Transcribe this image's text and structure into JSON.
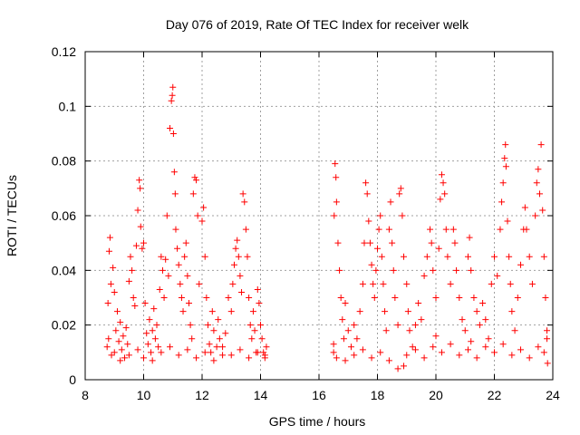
{
  "chart_data": {
    "type": "scatter",
    "title": "Day 076 of 2019, Rate Of TEC Index for receiver welk",
    "xlabel": "GPS time / hours",
    "ylabel": "ROTI / TECUs",
    "xlim": [
      8,
      24
    ],
    "ylim": [
      0,
      0.12
    ],
    "xticks": [
      8,
      10,
      12,
      14,
      16,
      18,
      20,
      22,
      24
    ],
    "xtick_labels": [
      "8",
      "10",
      "12",
      "14",
      "16",
      "18",
      "20",
      "22",
      "24"
    ],
    "yticks": [
      0,
      0.02,
      0.04,
      0.06,
      0.08,
      0.1,
      0.12
    ],
    "ytick_labels": [
      "0",
      "0.02",
      "0.04",
      "0.06",
      "0.08",
      "0.1",
      "0.12"
    ],
    "grid": true,
    "marker": "+",
    "series": [
      {
        "name": "welk",
        "color": "#ff0000",
        "points": [
          [
            8.75,
            0.012
          ],
          [
            8.78,
            0.028
          ],
          [
            8.82,
            0.047
          ],
          [
            8.85,
            0.052
          ],
          [
            8.88,
            0.035
          ],
          [
            8.9,
            0.009
          ],
          [
            8.95,
            0.041
          ],
          [
            9.0,
            0.032
          ],
          [
            9.05,
            0.018
          ],
          [
            9.1,
            0.025
          ],
          [
            9.15,
            0.014
          ],
          [
            9.2,
            0.021
          ],
          [
            9.25,
            0.011
          ],
          [
            9.3,
            0.016
          ],
          [
            9.35,
            0.008
          ],
          [
            9.4,
            0.019
          ],
          [
            9.45,
            0.013
          ],
          [
            9.5,
            0.036
          ],
          [
            9.55,
            0.045
          ],
          [
            9.6,
            0.04
          ],
          [
            9.65,
            0.03
          ],
          [
            9.7,
            0.027
          ],
          [
            9.75,
            0.049
          ],
          [
            9.8,
            0.062
          ],
          [
            9.85,
            0.073
          ],
          [
            9.88,
            0.07
          ],
          [
            9.9,
            0.056
          ],
          [
            9.95,
            0.048
          ],
          [
            10.0,
            0.05
          ],
          [
            10.05,
            0.028
          ],
          [
            10.1,
            0.017
          ],
          [
            10.15,
            0.013
          ],
          [
            10.2,
            0.022
          ],
          [
            10.25,
            0.01
          ],
          [
            10.3,
            0.018
          ],
          [
            10.35,
            0.026
          ],
          [
            10.4,
            0.015
          ],
          [
            10.45,
            0.02
          ],
          [
            10.5,
            0.012
          ],
          [
            10.55,
            0.033
          ],
          [
            10.6,
            0.045
          ],
          [
            10.65,
            0.04
          ],
          [
            10.7,
            0.03
          ],
          [
            10.75,
            0.044
          ],
          [
            10.8,
            0.06
          ],
          [
            10.85,
            0.038
          ],
          [
            10.9,
            0.092
          ],
          [
            10.95,
            0.102
          ],
          [
            10.98,
            0.104
          ],
          [
            11.0,
            0.107
          ],
          [
            11.02,
            0.09
          ],
          [
            11.05,
            0.076
          ],
          [
            11.08,
            0.068
          ],
          [
            11.1,
            0.055
          ],
          [
            11.15,
            0.048
          ],
          [
            11.2,
            0.042
          ],
          [
            11.25,
            0.035
          ],
          [
            11.3,
            0.03
          ],
          [
            11.35,
            0.025
          ],
          [
            11.4,
            0.045
          ],
          [
            11.45,
            0.05
          ],
          [
            11.5,
            0.038
          ],
          [
            11.55,
            0.028
          ],
          [
            11.6,
            0.02
          ],
          [
            11.65,
            0.015
          ],
          [
            11.7,
            0.068
          ],
          [
            11.75,
            0.074
          ],
          [
            11.8,
            0.073
          ],
          [
            11.85,
            0.06
          ],
          [
            11.9,
            0.035
          ],
          [
            12.0,
            0.058
          ],
          [
            12.05,
            0.063
          ],
          [
            12.1,
            0.045
          ],
          [
            12.15,
            0.03
          ],
          [
            12.2,
            0.02
          ],
          [
            12.25,
            0.013
          ],
          [
            12.3,
            0.01
          ],
          [
            12.35,
            0.025
          ],
          [
            12.4,
            0.018
          ],
          [
            12.5,
            0.012
          ],
          [
            12.55,
            0.022
          ],
          [
            12.6,
            0.015
          ],
          [
            12.7,
            0.009
          ],
          [
            12.8,
            0.017
          ],
          [
            12.9,
            0.03
          ],
          [
            13.0,
            0.025
          ],
          [
            13.05,
            0.035
          ],
          [
            13.1,
            0.042
          ],
          [
            13.15,
            0.048
          ],
          [
            13.2,
            0.051
          ],
          [
            13.25,
            0.045
          ],
          [
            13.3,
            0.038
          ],
          [
            13.35,
            0.032
          ],
          [
            13.4,
            0.068
          ],
          [
            13.45,
            0.065
          ],
          [
            13.5,
            0.055
          ],
          [
            13.55,
            0.045
          ],
          [
            13.6,
            0.03
          ],
          [
            13.65,
            0.02
          ],
          [
            13.7,
            0.015
          ],
          [
            13.75,
            0.025
          ],
          [
            13.8,
            0.018
          ],
          [
            13.85,
            0.01
          ],
          [
            13.9,
            0.033
          ],
          [
            13.95,
            0.028
          ],
          [
            14.0,
            0.02
          ],
          [
            14.05,
            0.015
          ],
          [
            14.1,
            0.01
          ],
          [
            14.15,
            0.008
          ],
          [
            14.2,
            0.012
          ],
          [
            9.0,
            0.01
          ],
          [
            9.2,
            0.007
          ],
          [
            9.5,
            0.009
          ],
          [
            9.8,
            0.011
          ],
          [
            10.0,
            0.008
          ],
          [
            10.3,
            0.007
          ],
          [
            10.6,
            0.01
          ],
          [
            10.9,
            0.012
          ],
          [
            11.2,
            0.009
          ],
          [
            11.5,
            0.011
          ],
          [
            11.8,
            0.008
          ],
          [
            12.1,
            0.01
          ],
          [
            12.4,
            0.007
          ],
          [
            12.7,
            0.012
          ],
          [
            13.0,
            0.009
          ],
          [
            13.3,
            0.011
          ],
          [
            13.6,
            0.008
          ],
          [
            13.9,
            0.01
          ],
          [
            14.15,
            0.009
          ],
          [
            8.8,
            0.015
          ],
          [
            16.5,
            0.01
          ],
          [
            16.52,
            0.06
          ],
          [
            16.55,
            0.079
          ],
          [
            16.58,
            0.074
          ],
          [
            16.6,
            0.065
          ],
          [
            16.65,
            0.05
          ],
          [
            16.7,
            0.04
          ],
          [
            16.75,
            0.03
          ],
          [
            16.8,
            0.022
          ],
          [
            16.85,
            0.015
          ],
          [
            16.9,
            0.028
          ],
          [
            17.0,
            0.018
          ],
          [
            17.1,
            0.012
          ],
          [
            17.2,
            0.02
          ],
          [
            17.3,
            0.015
          ],
          [
            17.4,
            0.025
          ],
          [
            17.5,
            0.035
          ],
          [
            17.55,
            0.05
          ],
          [
            17.6,
            0.072
          ],
          [
            17.65,
            0.068
          ],
          [
            17.7,
            0.058
          ],
          [
            17.75,
            0.05
          ],
          [
            17.8,
            0.042
          ],
          [
            17.85,
            0.035
          ],
          [
            17.9,
            0.03
          ],
          [
            17.95,
            0.04
          ],
          [
            18.0,
            0.048
          ],
          [
            18.05,
            0.055
          ],
          [
            18.1,
            0.06
          ],
          [
            18.15,
            0.045
          ],
          [
            18.2,
            0.035
          ],
          [
            18.25,
            0.025
          ],
          [
            18.3,
            0.018
          ],
          [
            18.4,
            0.055
          ],
          [
            18.45,
            0.065
          ],
          [
            18.5,
            0.05
          ],
          [
            18.55,
            0.04
          ],
          [
            18.6,
            0.03
          ],
          [
            18.7,
            0.02
          ],
          [
            18.75,
            0.068
          ],
          [
            18.8,
            0.07
          ],
          [
            18.85,
            0.06
          ],
          [
            18.9,
            0.045
          ],
          [
            19.0,
            0.035
          ],
          [
            19.05,
            0.025
          ],
          [
            19.1,
            0.018
          ],
          [
            19.2,
            0.012
          ],
          [
            19.3,
            0.02
          ],
          [
            19.4,
            0.028
          ],
          [
            19.5,
            0.022
          ],
          [
            19.6,
            0.038
          ],
          [
            19.7,
            0.045
          ],
          [
            19.8,
            0.055
          ],
          [
            19.85,
            0.05
          ],
          [
            19.9,
            0.04
          ],
          [
            20.0,
            0.03
          ],
          [
            20.1,
            0.048
          ],
          [
            20.15,
            0.066
          ],
          [
            20.2,
            0.075
          ],
          [
            20.25,
            0.072
          ],
          [
            20.3,
            0.068
          ],
          [
            20.35,
            0.055
          ],
          [
            20.4,
            0.045
          ],
          [
            20.5,
            0.035
          ],
          [
            20.6,
            0.055
          ],
          [
            20.65,
            0.05
          ],
          [
            20.7,
            0.04
          ],
          [
            20.8,
            0.03
          ],
          [
            20.9,
            0.022
          ],
          [
            21.0,
            0.018
          ],
          [
            21.1,
            0.045
          ],
          [
            21.15,
            0.052
          ],
          [
            21.2,
            0.04
          ],
          [
            21.3,
            0.03
          ],
          [
            21.4,
            0.025
          ],
          [
            21.5,
            0.02
          ],
          [
            21.6,
            0.028
          ],
          [
            21.7,
            0.022
          ],
          [
            21.8,
            0.015
          ],
          [
            21.9,
            0.035
          ],
          [
            22.0,
            0.045
          ],
          [
            22.1,
            0.038
          ],
          [
            22.2,
            0.055
          ],
          [
            22.25,
            0.065
          ],
          [
            22.3,
            0.072
          ],
          [
            22.35,
            0.081
          ],
          [
            22.38,
            0.086
          ],
          [
            22.4,
            0.078
          ],
          [
            22.45,
            0.058
          ],
          [
            22.5,
            0.045
          ],
          [
            22.55,
            0.035
          ],
          [
            22.6,
            0.025
          ],
          [
            22.7,
            0.018
          ],
          [
            22.8,
            0.03
          ],
          [
            22.9,
            0.042
          ],
          [
            23.0,
            0.055
          ],
          [
            23.05,
            0.063
          ],
          [
            23.1,
            0.055
          ],
          [
            23.2,
            0.045
          ],
          [
            23.3,
            0.035
          ],
          [
            23.4,
            0.06
          ],
          [
            23.45,
            0.072
          ],
          [
            23.5,
            0.077
          ],
          [
            23.55,
            0.068
          ],
          [
            23.6,
            0.086
          ],
          [
            23.65,
            0.062
          ],
          [
            23.7,
            0.045
          ],
          [
            23.75,
            0.03
          ],
          [
            23.8,
            0.015
          ],
          [
            23.82,
            0.006
          ],
          [
            16.6,
            0.008
          ],
          [
            16.9,
            0.007
          ],
          [
            17.2,
            0.009
          ],
          [
            17.5,
            0.011
          ],
          [
            17.8,
            0.008
          ],
          [
            18.1,
            0.01
          ],
          [
            18.4,
            0.007
          ],
          [
            18.7,
            0.004
          ],
          [
            19.0,
            0.009
          ],
          [
            19.3,
            0.011
          ],
          [
            19.6,
            0.008
          ],
          [
            19.9,
            0.012
          ],
          [
            20.2,
            0.01
          ],
          [
            20.5,
            0.013
          ],
          [
            20.8,
            0.009
          ],
          [
            21.1,
            0.011
          ],
          [
            21.4,
            0.008
          ],
          [
            21.7,
            0.012
          ],
          [
            22.0,
            0.01
          ],
          [
            22.3,
            0.013
          ],
          [
            22.6,
            0.009
          ],
          [
            22.9,
            0.011
          ],
          [
            23.2,
            0.008
          ],
          [
            23.5,
            0.012
          ],
          [
            23.7,
            0.01
          ],
          [
            16.5,
            0.013
          ],
          [
            23.8,
            0.018
          ],
          [
            18.9,
            0.005
          ],
          [
            20.0,
            0.016
          ],
          [
            21.2,
            0.014
          ]
        ]
      }
    ]
  }
}
